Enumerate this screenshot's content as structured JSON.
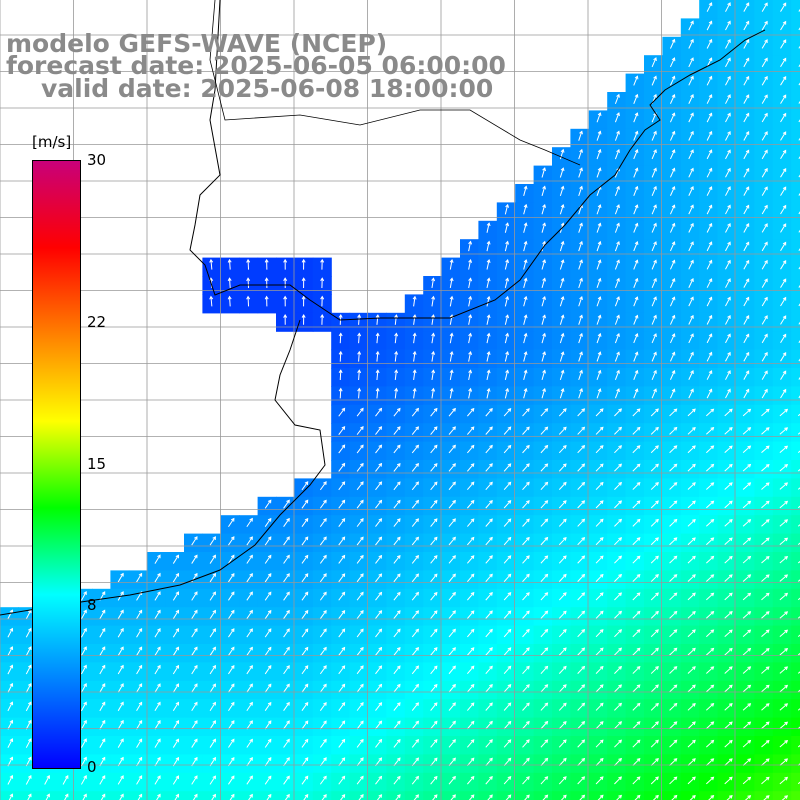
{
  "title": {
    "line1": "modelo GEFS-WAVE (NCEP)",
    "line2": "forecast date: 2025-06-05 06:00:00",
    "line3": "valid date: 2025-06-08 18:00:00"
  },
  "colorbar": {
    "unit": "[m/s]",
    "ticks": [
      {
        "label": "30",
        "value": 30
      },
      {
        "label": "22",
        "value": 22
      },
      {
        "label": "15",
        "value": 15
      },
      {
        "label": "8",
        "value": 8
      },
      {
        "label": "0",
        "value": 0
      }
    ],
    "range": [
      0,
      30
    ],
    "colors": [
      "#0000ff",
      "#0080ff",
      "#00ffff",
      "#00ff00",
      "#ffff00",
      "#ff8000",
      "#ff0000",
      "#c8007a"
    ]
  },
  "map": {
    "variable": "wind speed and direction",
    "land_color": "#ffffff",
    "grid_lines": true,
    "coastline_color": "#000000"
  }
}
